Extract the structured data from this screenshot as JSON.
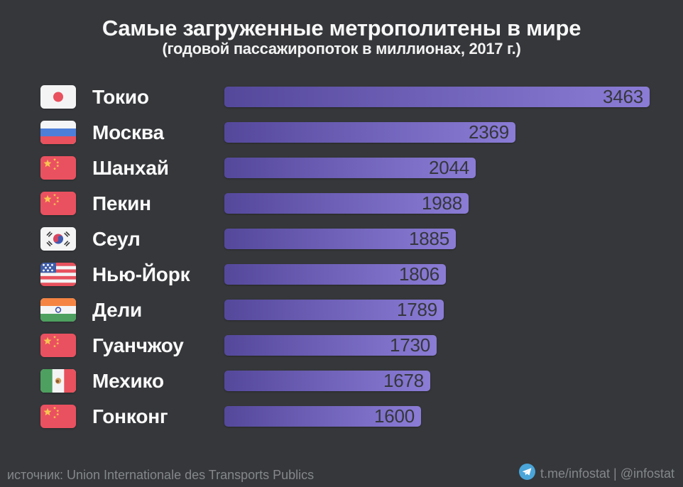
{
  "chart_data": {
    "type": "bar",
    "orientation": "horizontal",
    "title": "Самые загруженные метрополитены в мире",
    "subtitle": "(годовой пассажиропоток в миллионах, 2017 г.)",
    "value_unit": "миллионов пассажиров в год",
    "year": "2017",
    "xlim": [
      0,
      3463
    ],
    "grid": false,
    "legend": false,
    "rows": [
      {
        "city": "Токио",
        "value": 3463,
        "flag": "japan"
      },
      {
        "city": "Москва",
        "value": 2369,
        "flag": "russia"
      },
      {
        "city": "Шанхай",
        "value": 2044,
        "flag": "china"
      },
      {
        "city": "Пекин",
        "value": 1988,
        "flag": "china"
      },
      {
        "city": "Сеул",
        "value": 1885,
        "flag": "south-korea"
      },
      {
        "city": "Нью-Йорк",
        "value": 1806,
        "flag": "usa"
      },
      {
        "city": "Дели",
        "value": 1789,
        "flag": "india"
      },
      {
        "city": "Гуанчжоу",
        "value": 1730,
        "flag": "china"
      },
      {
        "city": "Мехико",
        "value": 1678,
        "flag": "mexico"
      },
      {
        "city": "Гонконг",
        "value": 1600,
        "flag": "china"
      }
    ]
  },
  "footer": {
    "source": "источник: Union Internationale des Transports Publics",
    "telegram": "t.me/infostat | @infostat"
  },
  "colors": {
    "background": "#35373a",
    "bar_gradient_start": "#54489b",
    "bar_gradient_end": "#8b7cd6",
    "bar_value_text": "#35373c",
    "title_text": "#f7f7f7",
    "footer_text": "#84878b",
    "telegram_blue": "#4aa5d9"
  }
}
